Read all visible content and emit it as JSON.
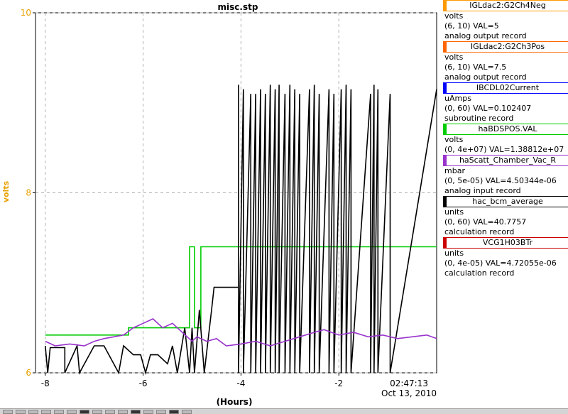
{
  "chart_data": {
    "type": "line",
    "title": "misc.stp",
    "ylabel": "volts",
    "xlabel": "(Hours)",
    "xlim": [
      -8.2,
      0
    ],
    "ylim": [
      6,
      10
    ],
    "x_ticks": [
      "-8",
      "-6",
      "-4",
      "-2"
    ],
    "x_tick_values": [
      -8,
      -6,
      -4,
      -2
    ],
    "y_ticks": [
      "6",
      "8",
      "10"
    ],
    "y_tick_values": [
      6,
      8,
      10
    ],
    "timestamp_time": "02:47:13",
    "timestamp_date": "Oct 13, 2010",
    "grid": true,
    "legend_position": "right",
    "series": [
      {
        "name": "haBDSPOS.VAL",
        "color": "#00cc00",
        "x": [
          -8.0,
          -6.3,
          -6.3,
          -5.05,
          -5.05,
          -4.95,
          -4.95,
          -4.82,
          -4.82,
          0
        ],
        "y": [
          6.42,
          6.42,
          6.5,
          6.5,
          7.4,
          7.4,
          6.5,
          6.5,
          7.4,
          7.4
        ]
      },
      {
        "name": "hac_bcm_average",
        "color": "#000000",
        "x": [
          -8.0,
          -7.95,
          -7.9,
          -7.6,
          -7.6,
          -7.35,
          -7.3,
          -7.0,
          -6.8,
          -6.5,
          -6.4,
          -6.2,
          -6.05,
          -5.95,
          -5.85,
          -5.7,
          -5.5,
          -5.4,
          -5.3,
          -5.15,
          -5.05,
          -5.0,
          -4.95,
          -4.85,
          -4.75,
          -4.6,
          -4.55,
          -4.25,
          -4.05,
          -4.05,
          -4.05,
          -3.95,
          -3.95,
          -3.8,
          -3.8,
          -3.7,
          -3.7,
          -3.6,
          -3.6,
          -3.5,
          -3.5,
          -3.4,
          -3.4,
          -3.3,
          -3.3,
          -3.22,
          -3.22,
          -3.1,
          -3.1,
          -3.0,
          -3.0,
          -2.9,
          -2.9,
          -2.8,
          -2.8,
          -2.6,
          -2.6,
          -2.5,
          -2.5,
          -2.4,
          -2.4,
          -2.2,
          -2.2,
          -2.1,
          -2.1,
          -1.95,
          -1.95,
          -1.85,
          -1.85,
          -1.75,
          -1.75,
          -1.35,
          -1.35,
          -1.28,
          -1.28,
          -1.2,
          -1.2,
          -0.95,
          -0.95,
          0
        ],
        "y": [
          6.3,
          6.0,
          6.28,
          6.28,
          6.0,
          6.3,
          6.0,
          6.3,
          6.3,
          6.0,
          6.3,
          6.2,
          6.2,
          6.0,
          6.2,
          6.2,
          6.1,
          6.3,
          6.0,
          6.5,
          6.0,
          6.5,
          6.0,
          6.7,
          6.0,
          6.7,
          6.95,
          6.95,
          6.95,
          9.2,
          6.0,
          9.15,
          6.0,
          9.1,
          6.0,
          9.1,
          6.0,
          9.15,
          6.0,
          9.1,
          6.0,
          9.2,
          6.0,
          9.15,
          6.0,
          9.2,
          6.0,
          9.1,
          6.0,
          9.2,
          6.0,
          9.15,
          6.0,
          9.1,
          6.0,
          9.15,
          6.0,
          9.2,
          6.0,
          9.1,
          6.0,
          9.15,
          6.0,
          9.1,
          6.0,
          9.15,
          6.0,
          9.2,
          6.0,
          9.15,
          6.0,
          9.1,
          6.0,
          9.2,
          6.0,
          9.15,
          6.0,
          9.1,
          6.0,
          9.15
        ]
      },
      {
        "name": "haScatt_Chamber_Vac_R",
        "color": "#9933cc",
        "x": [
          -8.0,
          -7.8,
          -7.5,
          -7.2,
          -7.0,
          -6.8,
          -6.6,
          -6.4,
          -6.2,
          -6.0,
          -5.8,
          -5.6,
          -5.4,
          -5.2,
          -5.0,
          -4.9,
          -4.7,
          -4.5,
          -4.3,
          -4.0,
          -3.7,
          -3.4,
          -3.1,
          -2.8,
          -2.5,
          -2.3,
          -2.0,
          -1.7,
          -1.4,
          -1.1,
          -0.8,
          -0.5,
          -0.2,
          0
        ],
        "y": [
          6.35,
          6.3,
          6.32,
          6.3,
          6.35,
          6.38,
          6.4,
          6.42,
          6.5,
          6.55,
          6.6,
          6.5,
          6.55,
          6.45,
          6.35,
          6.4,
          6.35,
          6.38,
          6.3,
          6.32,
          6.35,
          6.3,
          6.35,
          6.4,
          6.45,
          6.48,
          6.42,
          6.45,
          6.4,
          6.42,
          6.38,
          6.4,
          6.42,
          6.38
        ]
      }
    ]
  },
  "legend": [
    {
      "name": "IGLdac2:G2Ch4Neg",
      "color": "#ff9900",
      "units": "volts",
      "range_val": "(6, 10)  VAL=5",
      "record": "analog output record"
    },
    {
      "name": "IGLdac2:G2Ch3Pos",
      "color": "#ff6600",
      "units": "volts",
      "range_val": "(6, 10) VAL=7.5",
      "record": "analog output record"
    },
    {
      "name": "IBCDL02Current",
      "color": "#0000ff",
      "units": "uAmps",
      "range_val": "(0, 60) VAL=0.102407",
      "record": "subroutine record"
    },
    {
      "name": "haBDSPOS.VAL",
      "color": "#00cc00",
      "units": "volts",
      "range_val": "(0, 4e+07) VAL=1.38812e+07",
      "record": ""
    },
    {
      "name": "haScatt_Chamber_Vac_R",
      "color": "#9933cc",
      "units": "mbar",
      "range_val": "(0, 5e-05) VAL=4.50344e-06",
      "record": "analog input record"
    },
    {
      "name": "hac_bcm_average",
      "color": "#000000",
      "units": "units",
      "range_val": "(0, 60) VAL=40.7757",
      "record": "calculation record"
    },
    {
      "name": "VCG1H03BTr",
      "color": "#cc0000",
      "units": "units",
      "range_val": "(0, 4e-05) VAL=4.72055e-06",
      "record": "calculation record"
    }
  ],
  "colors": {
    "ylabel": "#e8a000",
    "grid": "#b0b0b0"
  }
}
